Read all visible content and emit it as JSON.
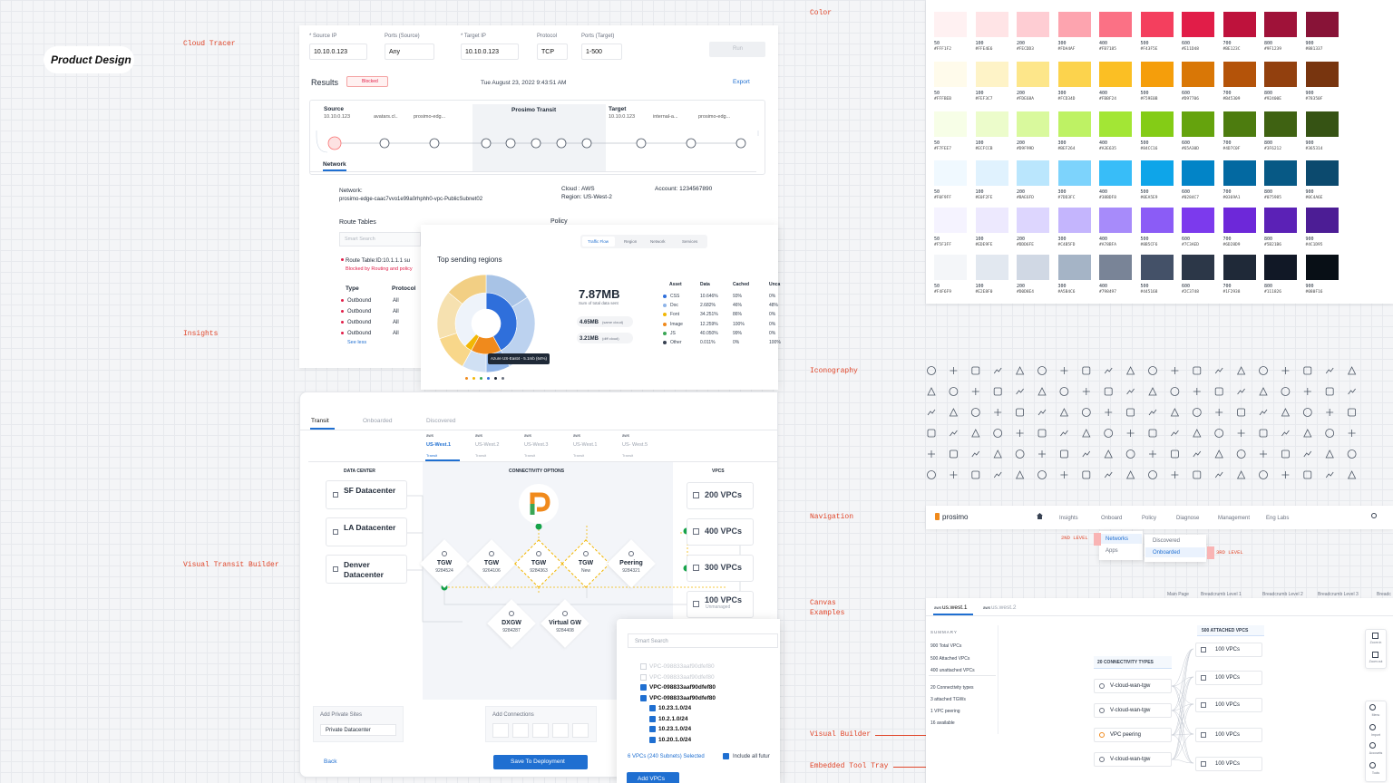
{
  "brand": "Product Design",
  "section_labels": {
    "cloud_tracer": "Cloud Tracer",
    "insights": "Insights",
    "visual_transit_builder": "Visual Transit Builder",
    "color": "Color",
    "iconography": "Iconography",
    "navigation": "Navigation",
    "canvas_examples": "Canvas Examples",
    "visual_builder": "Visual Builder",
    "embedded_tool_tray": "Embedded Tool Tray"
  },
  "cloud_tracer": {
    "fields": [
      {
        "label": "* Source IP",
        "value": "10.10.0.123"
      },
      {
        "label": "Ports (Source)",
        "value": "Any"
      },
      {
        "label": "* Target IP",
        "value": "10.10.0.123"
      },
      {
        "label": "Protocol",
        "value": "TCP"
      },
      {
        "label": "Ports (Target)",
        "value": "1-500"
      }
    ],
    "run": "Run",
    "results": "Results",
    "status": "Blocked",
    "timestamp": "Tue August 23, 2022 9:43:51 AM",
    "export": "Export",
    "source": {
      "title": "Source",
      "ip": "10.10.0.123",
      "hops": [
        "avatars.cl..",
        "prosimo-edg..."
      ]
    },
    "transit": "Prosimo Transit",
    "target": {
      "title": "Target",
      "ip": "10.10.0.123",
      "hops": [
        "internal-a...",
        "prosimo-edg..."
      ]
    },
    "tab": "Network",
    "network_label": "Network:",
    "network_value": "prosimo-edge-caac7vvo1e99a0rhphh0-vpc-PublicSubnet02",
    "cloud": "Cloud : AWS",
    "region": "Region: US-West-2",
    "account": "Account: 1234567890",
    "route_tables": "Route Tables",
    "policy": "Policy",
    "search_placeholder": "Smart Search",
    "route_table": "Route Table:ID:10.1.1.1 su",
    "blocked_note": "Blocked by Routing and policy",
    "columns": [
      "Type",
      "Protocol"
    ],
    "rows": [
      [
        "Outbound",
        "All"
      ],
      [
        "Outbound",
        "All"
      ],
      [
        "Outbound",
        "All"
      ],
      [
        "Outbound",
        "All"
      ]
    ],
    "see_less": "See less"
  },
  "insights": {
    "tabs": [
      "Traffic Flow",
      "Region",
      "Network",
      "Services"
    ],
    "title": "Top sending regions",
    "tooltip": "Azure US-East4 - 5.1mb (64%)",
    "total": "7.87MB",
    "total_label": "Sum of total data sent",
    "same_cloud": "4.65MB",
    "same_cloud_label": "(same cloud)",
    "diff_cloud": "3.21MB",
    "diff_cloud_label": "(diff cloud)",
    "columns": [
      "Asset",
      "Data",
      "Cached",
      "Unca"
    ],
    "rows": [
      {
        "asset": "CSS",
        "data": "10.646%",
        "cached": "93%",
        "uncached": "0%",
        "color": "#2f6fdb"
      },
      {
        "asset": "Doc",
        "data": "2.682%",
        "cached": "46%",
        "uncached": "48%",
        "color": "#8fb4e8"
      },
      {
        "asset": "Font",
        "data": "34.251%",
        "cached": "86%",
        "uncached": "0%",
        "color": "#f2b705"
      },
      {
        "asset": "Image",
        "data": "12.259%",
        "cached": "100%",
        "uncached": "0%",
        "color": "#f08a1c"
      },
      {
        "asset": "JS",
        "data": "40.050%",
        "cached": "99%",
        "uncached": "0%",
        "color": "#3aa655"
      },
      {
        "asset": "Other",
        "data": "0.011%",
        "cached": "0%",
        "uncached": "100%",
        "color": "#374151"
      }
    ]
  },
  "transit_builder": {
    "tabs": [
      "Transit",
      "Onboarded",
      "Discovered"
    ],
    "regions": [
      {
        "provider": "aws",
        "name": "US-West.1",
        "type": "Transit"
      },
      {
        "provider": "aws",
        "name": "US-West.2",
        "type": "Transit"
      },
      {
        "provider": "aws",
        "name": "US-West.3",
        "type": "Transit"
      },
      {
        "provider": "aws",
        "name": "US-West.1",
        "type": "Transit"
      },
      {
        "provider": "aws",
        "name": "US- West.5",
        "type": "Transit"
      }
    ],
    "data_center_title": "DATA CENTER",
    "data_centers": [
      "SF Datacenter",
      "LA Datacenter",
      "Denver Datacenter"
    ],
    "connectivity_title": "CONNECTIVITY OPTIONS",
    "options": [
      {
        "name": "TGW",
        "id": "9284524"
      },
      {
        "name": "TGW",
        "id": "9264106"
      },
      {
        "name": "TGW",
        "id": "9284363"
      },
      {
        "name": "TGW",
        "id": "New"
      },
      {
        "name": "Peering",
        "id": "9284321"
      },
      {
        "name": "DXGW",
        "id": "9284287"
      },
      {
        "name": "Virtual GW",
        "id": "9284408"
      }
    ],
    "vpcs_title": "VPCS",
    "vpcs": [
      "200 VPCs",
      "400 VPCs",
      "300 VPCs",
      "100 VPCs"
    ],
    "unmanaged": "Unmanaged",
    "add_private_sites": "Add Private Sites",
    "private_datacenter": "Private Datacenter",
    "add_connections": "Add Connections",
    "back": "Back",
    "save": "Save To Deployment"
  },
  "vpc_search": {
    "placeholder": "Smart Search",
    "items": [
      "VPC-098833aaf90dfef80",
      "VPC-098833aaf90dfef80",
      "VPC-098833aaf90dfef80",
      "VPC-098833aaf90dfef80",
      "10.23.1.0/24",
      "10.2.1.0/24",
      "10.23.1.0/24",
      "10.20.1.0/24"
    ],
    "selected": "6 VPCs (240 Subnets) Selected",
    "include": "Include all futur",
    "add": "Add VPCs"
  },
  "colors": {
    "shades": [
      "50",
      "100",
      "200",
      "300",
      "400",
      "500",
      "600",
      "700",
      "800",
      "900"
    ],
    "rows": [
      [
        "#FFF1F2",
        "#FFE4E6",
        "#FECDD3",
        "#FDA4AF",
        "#FB7185",
        "#F43F5E",
        "#E11D48",
        "#BE123C",
        "#9F1239",
        "#881337"
      ],
      [
        "#FFFBEB",
        "#FEF3C7",
        "#FDE68A",
        "#FCD34D",
        "#FBBF24",
        "#F59E0B",
        "#D97706",
        "#B45309",
        "#92400E",
        "#78350F"
      ],
      [
        "#F7FEE7",
        "#ECFCCB",
        "#D9F99D",
        "#BEF264",
        "#A3E635",
        "#84CC16",
        "#65A30D",
        "#4D7C0F",
        "#3F6212",
        "#365314"
      ],
      [
        "#F0F9FF",
        "#E0F2FE",
        "#BAE6FD",
        "#7DD3FC",
        "#38BDF8",
        "#0EA5E9",
        "#0284C7",
        "#0369A1",
        "#075985",
        "#0C4A6E"
      ],
      [
        "#F5F3FF",
        "#EDE9FE",
        "#DDD6FE",
        "#C4B5FD",
        "#A78BFA",
        "#8B5CF6",
        "#7C3AED",
        "#6D28D9",
        "#5B21B6",
        "#4C1D95"
      ],
      [
        "#F4F6F9",
        "#E2E8F0",
        "#D0D8E4",
        "#A5B4C6",
        "#798497",
        "#445168",
        "#2C3748",
        "#1F2938",
        "#111826",
        "#080F16"
      ]
    ]
  },
  "navigation": {
    "logo": "prosimo",
    "items": [
      "Insights",
      "Onboard",
      "Policy",
      "Diagnose",
      "Management",
      "Eng Labs"
    ],
    "level2": [
      "Networks",
      "Apps"
    ],
    "level3": [
      "Discovered",
      "Onboarded"
    ],
    "level2_label": "2ND LEVEL",
    "level3_label": "3RD LEVEL",
    "breadcrumbs": [
      "Main Page",
      "Breadcrumb Level 1",
      "Breadcrumb Level 2",
      "Breadcrumb Level 3",
      "Breadc"
    ]
  },
  "canvas": {
    "tabs": [
      {
        "provider": "aws",
        "name": "us.west.1"
      },
      {
        "provider": "aws",
        "name": "us.west.2"
      }
    ],
    "summary_title": "SUMMARY",
    "summary": [
      "900 Total VPCs",
      "500 Attached VPCs",
      "400 unattached VPCs",
      "20 Connectivity types",
      "3 attached TGWs",
      "1 VPC peering",
      "16 available"
    ],
    "connectivity_title": "20 CONNECTIVITY TYPES",
    "connectivity": [
      "V-cloud-wan-tgw",
      "V-cloud-wan-tgw",
      "VPC peering",
      "V-cloud-wan-tgw"
    ],
    "attached_title": "500 ATTACHED VPCS",
    "attached": [
      "100 VPCs",
      "100 VPCs",
      "100 VPCs",
      "100 VPCs",
      "100 VPCs"
    ],
    "tools": [
      "Zoom in",
      "Zoom out",
      "Menu",
      "Import",
      "Accounts",
      "Tools"
    ]
  }
}
